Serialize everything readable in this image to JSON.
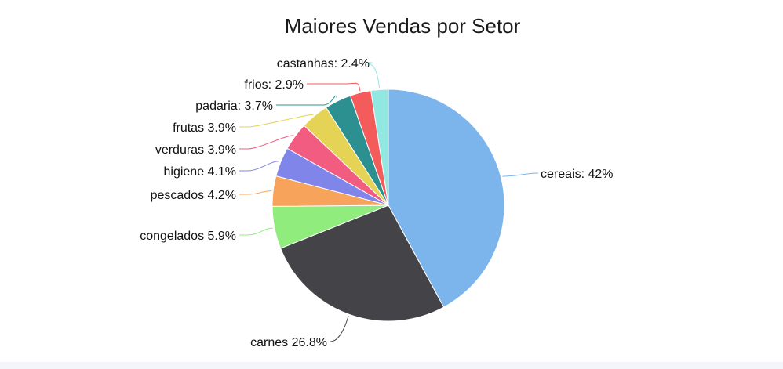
{
  "chart_data": {
    "type": "pie",
    "title": "Maiores Vendas por Setor",
    "slices": [
      {
        "name": "cereais",
        "label": "cereais: 42%",
        "value": 42.0,
        "color": "#7cb5ec"
      },
      {
        "name": "carnes",
        "label": "carnes 26.8%",
        "value": 26.8,
        "color": "#434348"
      },
      {
        "name": "congelados",
        "label": "congelados 5.9%",
        "value": 5.9,
        "color": "#90ed7d"
      },
      {
        "name": "pescados",
        "label": "pescados 4.2%",
        "value": 4.2,
        "color": "#f7a35c"
      },
      {
        "name": "higiene",
        "label": "higiene 4.1%",
        "value": 4.1,
        "color": "#8085e9"
      },
      {
        "name": "verduras",
        "label": "verduras 3.9%",
        "value": 3.9,
        "color": "#f15c80"
      },
      {
        "name": "frutas",
        "label": "frutas 3.9%",
        "value": 3.9,
        "color": "#e4d354"
      },
      {
        "name": "padaria",
        "label": "padaria: 3.7%",
        "value": 3.7,
        "color": "#2b908f"
      },
      {
        "name": "frios",
        "label": "frios: 2.9%",
        "value": 2.9,
        "color": "#f45b5b"
      },
      {
        "name": "castanhas",
        "label": "castanhas: 2.4%",
        "value": 2.4,
        "color": "#91e8e1"
      }
    ]
  }
}
